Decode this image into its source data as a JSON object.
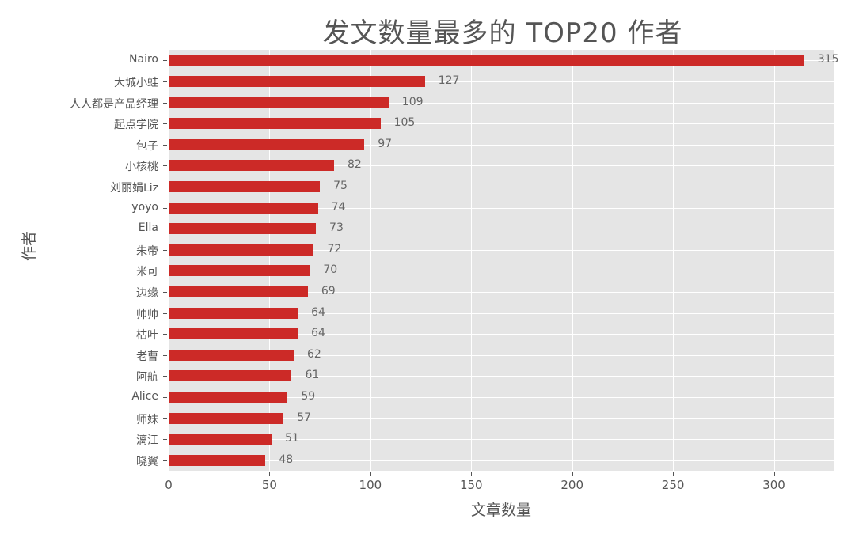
{
  "chart_data": {
    "type": "bar",
    "orientation": "horizontal",
    "title": "发文数量最多的 TOP20 作者",
    "xlabel": "文章数量",
    "ylabel": "作者",
    "xlim": [
      0,
      330
    ],
    "xticks": [
      0,
      50,
      100,
      150,
      200,
      250,
      300
    ],
    "grid": true,
    "bar_color": "#cc2a27",
    "background": "#e5e5e5",
    "categories": [
      "Nairo",
      "大城小蛙",
      "人人都是产品经理",
      "起点学院",
      "包子",
      "小核桃",
      "刘丽娟Liz",
      "yoyo",
      "Ella",
      "朱帝",
      "米可",
      "边缘",
      "帅帅",
      "枯叶",
      "老曹",
      "阿航",
      "Alice",
      "师妹",
      "漓江",
      "晓翼"
    ],
    "values": [
      315,
      127,
      109,
      105,
      97,
      82,
      75,
      74,
      73,
      72,
      70,
      69,
      64,
      64,
      62,
      61,
      59,
      57,
      51,
      48
    ]
  }
}
